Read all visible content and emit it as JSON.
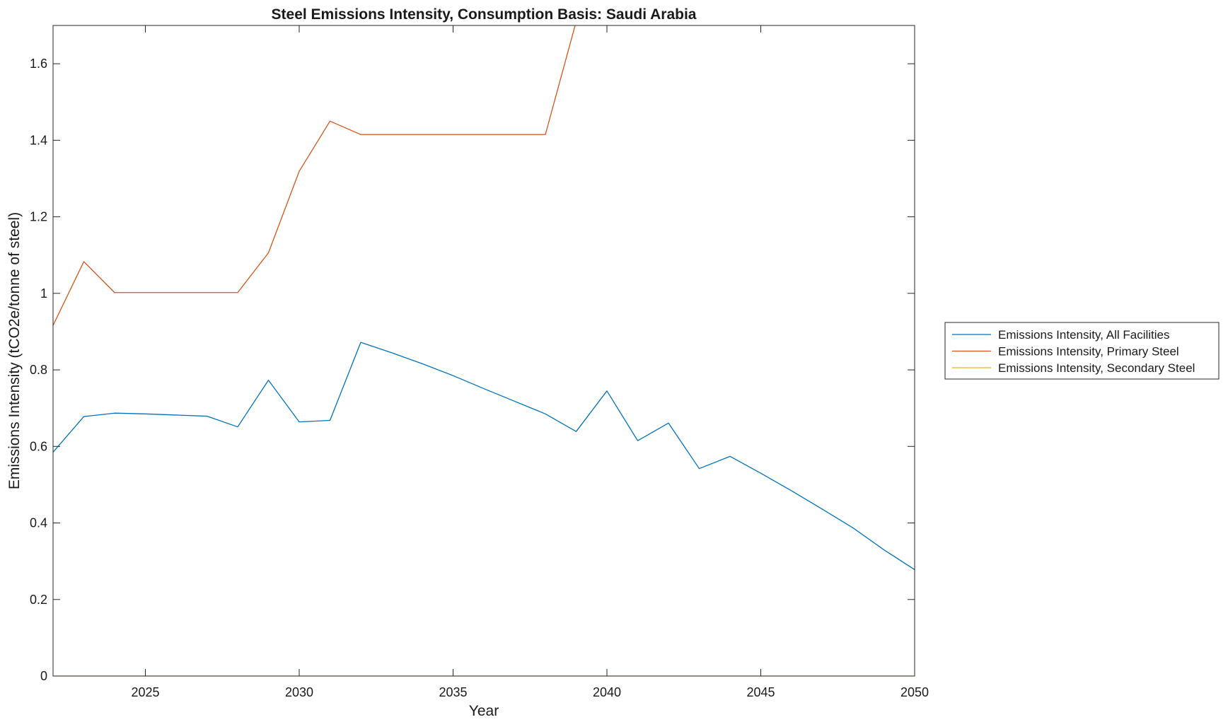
{
  "chart_data": {
    "type": "line",
    "title": "Steel Emissions Intensity, Consumption Basis: Saudi Arabia",
    "xlabel": "Year",
    "ylabel": "Emissions Intensity (tCO2e/tonne of steel)",
    "xlim": [
      2022,
      2050
    ],
    "ylim": [
      0,
      1.7
    ],
    "xticks": [
      2025,
      2030,
      2035,
      2040,
      2045,
      2050
    ],
    "yticks": [
      0,
      0.2,
      0.4,
      0.6,
      0.8,
      1,
      1.2,
      1.4,
      1.6
    ],
    "xtick_labels": [
      "2025",
      "2030",
      "2035",
      "2040",
      "2045",
      "2050"
    ],
    "ytick_labels": [
      "0",
      "0.2",
      "0.4",
      "0.6",
      "0.8",
      "1",
      "1.2",
      "1.4",
      "1.6"
    ],
    "grid": false,
    "legend_position": "outside right",
    "x": [
      2022,
      2023,
      2024,
      2025,
      2026,
      2027,
      2028,
      2029,
      2030,
      2031,
      2032,
      2033,
      2034,
      2035,
      2036,
      2037,
      2038,
      2039,
      2040,
      2041,
      2042,
      2043,
      2044,
      2045,
      2046,
      2047,
      2048,
      2049,
      2050
    ],
    "series": [
      {
        "name": "Emissions Intensity, All Facilities",
        "color": "#0072BD",
        "values": [
          0.585,
          0.678,
          0.687,
          0.685,
          0.682,
          0.679,
          0.651,
          0.773,
          0.664,
          0.668,
          0.872,
          0.845,
          0.816,
          0.785,
          0.751,
          0.718,
          0.685,
          0.639,
          0.745,
          0.615,
          0.661,
          0.542,
          0.574,
          0.53,
          0.484,
          0.436,
          0.387,
          0.33,
          0.278
        ]
      },
      {
        "name": "Emissions Intensity, Primary Steel",
        "color": "#D95319",
        "values": [
          0.916,
          1.083,
          1.002,
          1.002,
          1.002,
          1.002,
          1.002,
          1.106,
          1.319,
          1.45,
          1.415,
          1.415,
          1.415,
          1.415,
          1.415,
          1.415,
          1.415,
          1.71,
          1.71,
          1.71,
          1.71,
          1.71,
          1.71,
          1.71,
          1.71,
          1.71,
          1.71,
          1.71,
          1.71
        ]
      },
      {
        "name": "Emissions Intensity, Secondary Steel",
        "color": "#EDB120",
        "values": [
          0,
          0,
          0,
          0,
          0,
          0,
          0,
          0,
          0,
          0,
          0,
          0,
          0,
          0,
          0,
          0,
          0,
          0,
          0,
          0,
          0,
          0,
          0,
          0,
          0,
          0,
          0,
          0,
          0
        ]
      }
    ]
  }
}
